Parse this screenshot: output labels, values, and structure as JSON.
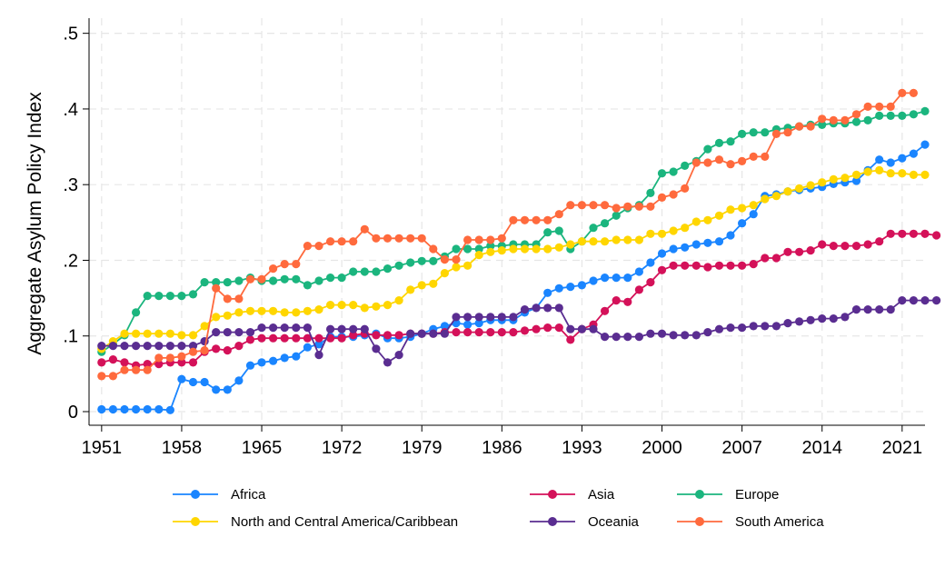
{
  "chart_data": {
    "type": "line",
    "title": "",
    "xlabel": "",
    "ylabel": "Aggregate Asylum Policy Index",
    "xlim": [
      1951,
      2022
    ],
    "ylim": [
      0,
      0.5
    ],
    "xticks": [
      1951,
      1958,
      1965,
      1972,
      1979,
      1986,
      1993,
      2000,
      2007,
      2014,
      2021
    ],
    "xtick_labels": [
      "1951",
      "1958",
      "1965",
      "1972",
      "1979",
      "1986",
      "1993",
      "2000",
      "2007",
      "2014",
      "2021"
    ],
    "yticks": [
      0,
      0.1,
      0.2,
      0.3,
      0.4,
      0.5
    ],
    "ytick_labels": [
      "0",
      ".1",
      ".2",
      ".3",
      ".4",
      ".5"
    ],
    "grid": true,
    "legend_position": "bottom",
    "x_start": 1951,
    "series": [
      {
        "name": "Africa",
        "color": "#1a85ff",
        "values": [
          0.003,
          0.003,
          0.003,
          0.003,
          0.003,
          0.003,
          0.002,
          0.043,
          0.039,
          0.039,
          0.029,
          0.029,
          0.041,
          0.061,
          0.065,
          0.067,
          0.071,
          0.073,
          0.085,
          0.089,
          0.099,
          0.099,
          0.099,
          0.101,
          0.103,
          0.097,
          0.097,
          0.099,
          0.103,
          0.109,
          0.113,
          0.117,
          0.115,
          0.117,
          0.121,
          0.121,
          0.121,
          0.131,
          0.137,
          0.157,
          0.163,
          0.165,
          0.167,
          0.173,
          0.177,
          0.177,
          0.177,
          0.185,
          0.197,
          0.209,
          0.215,
          0.217,
          0.221,
          0.223,
          0.225,
          0.233,
          0.249,
          0.261,
          0.285,
          0.287,
          0.291,
          0.293,
          0.295,
          0.297,
          0.301,
          0.303,
          0.305,
          0.319,
          0.333,
          0.329,
          0.335,
          0.341,
          0.353
        ]
      },
      {
        "name": "Asia",
        "color": "#d41159",
        "values": [
          0.065,
          0.069,
          0.065,
          0.061,
          0.063,
          0.063,
          0.065,
          0.065,
          0.065,
          0.079,
          0.083,
          0.081,
          0.087,
          0.095,
          0.097,
          0.097,
          0.097,
          0.097,
          0.097,
          0.097,
          0.097,
          0.097,
          0.101,
          0.103,
          0.101,
          0.101,
          0.101,
          0.103,
          0.103,
          0.103,
          0.105,
          0.105,
          0.105,
          0.105,
          0.105,
          0.105,
          0.105,
          0.107,
          0.109,
          0.111,
          0.111,
          0.095,
          0.109,
          0.115,
          0.133,
          0.147,
          0.145,
          0.161,
          0.171,
          0.187,
          0.193,
          0.193,
          0.193,
          0.191,
          0.193,
          0.193,
          0.193,
          0.195,
          0.203,
          0.203,
          0.211,
          0.211,
          0.213,
          0.221,
          0.219,
          0.219,
          0.219,
          0.221,
          0.225,
          0.235,
          0.235,
          0.235,
          0.235,
          0.233
        ]
      },
      {
        "name": "Europe",
        "color": "#1bb57e",
        "values": [
          0.079,
          0.089,
          0.101,
          0.131,
          0.153,
          0.153,
          0.153,
          0.153,
          0.155,
          0.171,
          0.171,
          0.171,
          0.173,
          0.177,
          0.173,
          0.173,
          0.175,
          0.175,
          0.167,
          0.173,
          0.177,
          0.177,
          0.185,
          0.185,
          0.185,
          0.189,
          0.193,
          0.197,
          0.199,
          0.199,
          0.205,
          0.215,
          0.215,
          0.215,
          0.219,
          0.219,
          0.221,
          0.221,
          0.221,
          0.237,
          0.239,
          0.215,
          0.225,
          0.243,
          0.249,
          0.259,
          0.269,
          0.273,
          0.289,
          0.315,
          0.317,
          0.325,
          0.331,
          0.347,
          0.355,
          0.357,
          0.367,
          0.369,
          0.369,
          0.373,
          0.375,
          0.377,
          0.379,
          0.379,
          0.381,
          0.381,
          0.383,
          0.385,
          0.391,
          0.391,
          0.391,
          0.393,
          0.397
        ]
      },
      {
        "name": "North and Central America/Caribbean",
        "color": "#ffd600",
        "values": [
          0.083,
          0.093,
          0.103,
          0.103,
          0.103,
          0.103,
          0.103,
          0.101,
          0.101,
          0.113,
          0.125,
          0.127,
          0.131,
          0.133,
          0.133,
          0.133,
          0.131,
          0.131,
          0.133,
          0.135,
          0.141,
          0.141,
          0.141,
          0.137,
          0.139,
          0.141,
          0.147,
          0.161,
          0.167,
          0.169,
          0.183,
          0.191,
          0.193,
          0.207,
          0.211,
          0.213,
          0.215,
          0.215,
          0.215,
          0.215,
          0.217,
          0.221,
          0.225,
          0.225,
          0.225,
          0.227,
          0.227,
          0.227,
          0.235,
          0.235,
          0.239,
          0.243,
          0.251,
          0.253,
          0.259,
          0.267,
          0.269,
          0.273,
          0.281,
          0.285,
          0.291,
          0.295,
          0.299,
          0.303,
          0.307,
          0.309,
          0.313,
          0.317,
          0.319,
          0.315,
          0.315,
          0.313,
          0.313
        ]
      },
      {
        "name": "Oceania",
        "color": "#5a2d91",
        "values": [
          0.087,
          0.087,
          0.087,
          0.087,
          0.087,
          0.087,
          0.087,
          0.087,
          0.087,
          0.093,
          0.105,
          0.105,
          0.105,
          0.105,
          0.111,
          0.111,
          0.111,
          0.111,
          0.111,
          0.075,
          0.109,
          0.109,
          0.109,
          0.109,
          0.083,
          0.065,
          0.075,
          0.103,
          0.103,
          0.103,
          0.103,
          0.125,
          0.125,
          0.125,
          0.125,
          0.125,
          0.125,
          0.135,
          0.137,
          0.137,
          0.137,
          0.109,
          0.109,
          0.109,
          0.099,
          0.099,
          0.099,
          0.099,
          0.103,
          0.103,
          0.101,
          0.101,
          0.101,
          0.105,
          0.109,
          0.111,
          0.111,
          0.113,
          0.113,
          0.113,
          0.117,
          0.119,
          0.121,
          0.123,
          0.123,
          0.125,
          0.135,
          0.135,
          0.135,
          0.135,
          0.147,
          0.147,
          0.147,
          0.147
        ]
      },
      {
        "name": "South America",
        "color": "#ff6a3d",
        "values": [
          0.047,
          0.047,
          0.055,
          0.055,
          0.055,
          0.071,
          0.071,
          0.073,
          0.079,
          0.081,
          0.163,
          0.149,
          0.149,
          0.175,
          0.175,
          0.189,
          0.195,
          0.195,
          0.219,
          0.219,
          0.225,
          0.225,
          0.225,
          0.241,
          0.229,
          0.229,
          0.229,
          0.229,
          0.229,
          0.215,
          0.201,
          0.201,
          0.227,
          0.227,
          0.227,
          0.229,
          0.253,
          0.253,
          0.253,
          0.253,
          0.261,
          0.273,
          0.273,
          0.273,
          0.273,
          0.269,
          0.271,
          0.271,
          0.271,
          0.283,
          0.287,
          0.295,
          0.329,
          0.329,
          0.333,
          0.327,
          0.331,
          0.337,
          0.337,
          0.367,
          0.369,
          0.377,
          0.377,
          0.387,
          0.385,
          0.385,
          0.393,
          0.403,
          0.403,
          0.403,
          0.421,
          0.421
        ]
      }
    ]
  },
  "legend": {
    "items": [
      {
        "label": "Africa",
        "color": "#1a85ff"
      },
      {
        "label": "Asia",
        "color": "#d41159"
      },
      {
        "label": "Europe",
        "color": "#1bb57e"
      },
      {
        "label": "North and Central America/Caribbean",
        "color": "#ffd600"
      },
      {
        "label": "Oceania",
        "color": "#5a2d91"
      },
      {
        "label": "South America",
        "color": "#ff6a3d"
      }
    ]
  }
}
